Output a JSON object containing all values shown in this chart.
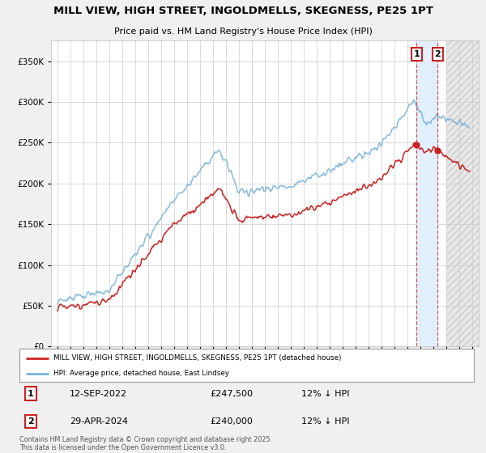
{
  "title": "MILL VIEW, HIGH STREET, INGOLDMELLS, SKEGNESS, PE25 1PT",
  "subtitle": "Price paid vs. HM Land Registry's House Price Index (HPI)",
  "hpi_label": "HPI: Average price, detached house, East Lindsey",
  "property_label": "MILL VIEW, HIGH STREET, INGOLDMELLS, SKEGNESS, PE25 1PT (detached house)",
  "footer": "Contains HM Land Registry data © Crown copyright and database right 2025.\nThis data is licensed under the Open Government Licence v3.0.",
  "sale1_date": "12-SEP-2022",
  "sale1_price": "£247,500",
  "sale1_note": "12% ↓ HPI",
  "sale2_date": "29-APR-2024",
  "sale2_price": "£240,000",
  "sale2_note": "12% ↓ HPI",
  "sale1_x": 2022.71,
  "sale2_x": 2024.33,
  "sale1_y": 247500,
  "sale2_y": 240000,
  "ylim": [
    0,
    375000
  ],
  "xlim_start": 1994.5,
  "xlim_end": 2027.5,
  "hpi_color": "#7ab4d8",
  "property_color": "#cc2222",
  "background_color": "#f0f0f0",
  "plot_bg_color": "#ffffff",
  "grid_color": "#cccccc",
  "shade_blue_color": "#ddeeff",
  "shade_hatch_color": "#dddddd"
}
